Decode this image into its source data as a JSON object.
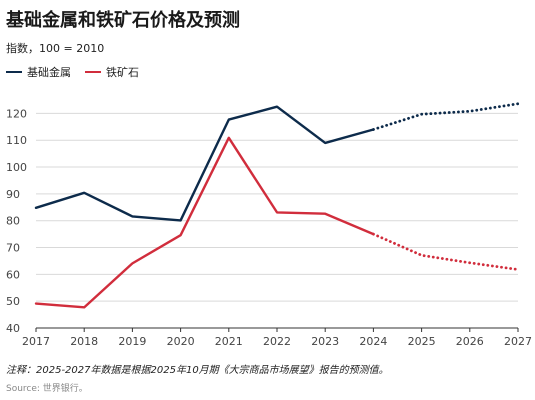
{
  "chart_data": {
    "type": "line",
    "title": "基础金属和铁矿石价格及预测",
    "subtitle": "指数，100 = 2010",
    "x": [
      "2017",
      "2018",
      "2019",
      "2020",
      "2021",
      "2022",
      "2023",
      "2024",
      "2025",
      "2026",
      "2027"
    ],
    "ylim": [
      40,
      125
    ],
    "yticks": [
      40,
      50,
      60,
      70,
      80,
      90,
      100,
      110,
      120
    ],
    "forecast_from": "2024",
    "grid": "horizontal",
    "legend_position": "top-left",
    "series": [
      {
        "name": "基础金属",
        "color": "#0d2b4b",
        "values": [
          84.8,
          90.4,
          81.6,
          80.1,
          117.7,
          122.5,
          109,
          114,
          119.7,
          120.8,
          123.6
        ]
      },
      {
        "name": "铁矿石",
        "color": "#d12d3c",
        "values": [
          49.1,
          47.7,
          64.1,
          74.6,
          110.9,
          83.1,
          82.6,
          75,
          67.1,
          64.3,
          61.8
        ]
      }
    ]
  },
  "note": "注释：2025-2027年数据是根据2025年10月期《大宗商品市场展望》报告的预测值。",
  "source": "Source: 世界银行。"
}
